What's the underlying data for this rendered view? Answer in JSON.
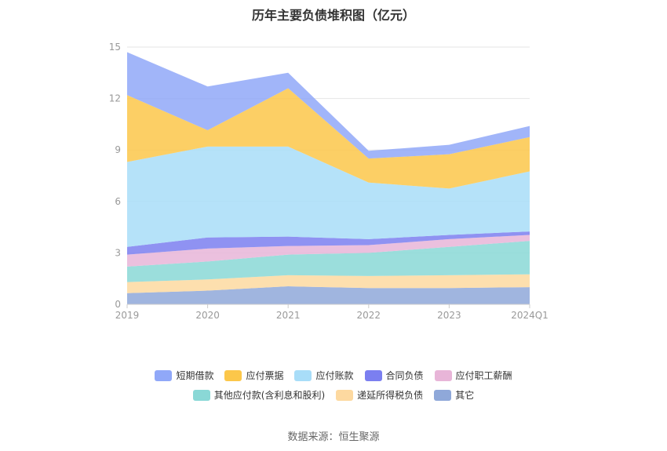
{
  "title": "历年主要负债堆积图（亿元）",
  "source": "数据来源：恒生聚源",
  "chart_data": {
    "type": "area",
    "stacked": true,
    "categories": [
      "2019",
      "2020",
      "2021",
      "2022",
      "2023",
      "2024Q1"
    ],
    "ylim": [
      0,
      15
    ],
    "yticks": [
      "0",
      "3",
      "6",
      "9",
      "12",
      "15"
    ],
    "grid": true,
    "legend_position": "bottom",
    "series": [
      {
        "name": "其它",
        "color": "#8fa8d9",
        "values": [
          0.65,
          0.8,
          1.05,
          0.95,
          0.95,
          1.0
        ]
      },
      {
        "name": "递延所得税负债",
        "color": "#fdd9a0",
        "values": [
          0.65,
          0.65,
          0.65,
          0.7,
          0.75,
          0.75
        ]
      },
      {
        "name": "其他应付款(含利息和股利)",
        "color": "#8ad8d6",
        "values": [
          0.9,
          1.05,
          1.2,
          1.35,
          1.65,
          1.95
        ]
      },
      {
        "name": "应付职工薪酬",
        "color": "#e8b5d8",
        "values": [
          0.7,
          0.75,
          0.5,
          0.45,
          0.45,
          0.35
        ]
      },
      {
        "name": "合同负债",
        "color": "#7b7ff0",
        "values": [
          0.45,
          0.65,
          0.55,
          0.35,
          0.25,
          0.2
        ]
      },
      {
        "name": "应付账款",
        "color": "#a8ddf8",
        "values": [
          4.95,
          5.3,
          5.25,
          3.3,
          2.7,
          3.5
        ]
      },
      {
        "name": "应付票据",
        "color": "#fcc74a",
        "values": [
          3.9,
          0.95,
          3.4,
          1.4,
          2.0,
          2.0
        ]
      },
      {
        "name": "短期借款",
        "color": "#90a8f8",
        "values": [
          2.5,
          2.55,
          0.9,
          0.45,
          0.55,
          0.65
        ]
      }
    ]
  },
  "legend": {
    "row1": [
      "短期借款",
      "应付票据",
      "应付账款",
      "合同负债",
      "应付职工薪酬"
    ],
    "row2": [
      "其他应付款(含利息和股利)",
      "递延所得税负债",
      "其它"
    ]
  }
}
